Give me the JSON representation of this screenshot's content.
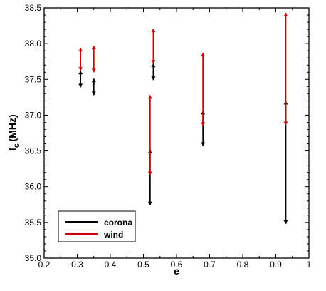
{
  "chart_data": {
    "type": "error-bar",
    "title": "",
    "xlabel": "e",
    "ylabel": {
      "main": "f",
      "sub": "c",
      "unit": "(MHz)"
    },
    "xlim": [
      0.2,
      1.0
    ],
    "ylim": [
      35.0,
      38.5
    ],
    "xticks": [
      0.2,
      0.3,
      0.4,
      0.5,
      0.6,
      0.7,
      0.8,
      0.9,
      1.0
    ],
    "xtick_labels": [
      "0.2",
      "0.3",
      "0.4",
      "0.5",
      "0.6",
      "0.7",
      "0.8",
      "0.9",
      "1"
    ],
    "yticks": [
      35.0,
      35.5,
      36.0,
      36.5,
      37.0,
      37.5,
      38.0,
      38.5
    ],
    "ytick_labels": [
      "35.0",
      "35.5",
      "36.0",
      "36.5",
      "37.0",
      "37.5",
      "38.0",
      "38.5"
    ],
    "grid": false,
    "legend_position": "bottom-left",
    "series": [
      {
        "name": "corona",
        "color": "#000000",
        "points": [
          {
            "x": 0.31,
            "center": 37.62,
            "low": 37.39,
            "high": 37.62
          },
          {
            "x": 0.35,
            "center": 37.51,
            "low": 37.28,
            "high": 37.51
          },
          {
            "x": 0.53,
            "center": 37.72,
            "low": 37.49,
            "high": 37.72
          },
          {
            "x": 0.52,
            "center": 36.52,
            "low": 35.74,
            "high": 36.52
          },
          {
            "x": 0.68,
            "center": 37.06,
            "low": 36.57,
            "high": 37.06
          },
          {
            "x": 0.93,
            "center": 37.2,
            "low": 35.48,
            "high": 37.2
          }
        ]
      },
      {
        "name": "wind",
        "color": "#cc0000",
        "points": [
          {
            "x": 0.31,
            "center": 37.62,
            "low": 37.62,
            "high": 37.94
          },
          {
            "x": 0.35,
            "center": 37.6,
            "low": 37.6,
            "high": 37.97
          },
          {
            "x": 0.53,
            "center": 37.72,
            "low": 37.72,
            "high": 38.21
          },
          {
            "x": 0.52,
            "center": 36.16,
            "low": 36.16,
            "high": 37.28
          },
          {
            "x": 0.68,
            "center": 36.85,
            "low": 36.85,
            "high": 37.87
          },
          {
            "x": 0.93,
            "center": 36.86,
            "low": 36.86,
            "high": 38.43
          }
        ]
      }
    ]
  }
}
